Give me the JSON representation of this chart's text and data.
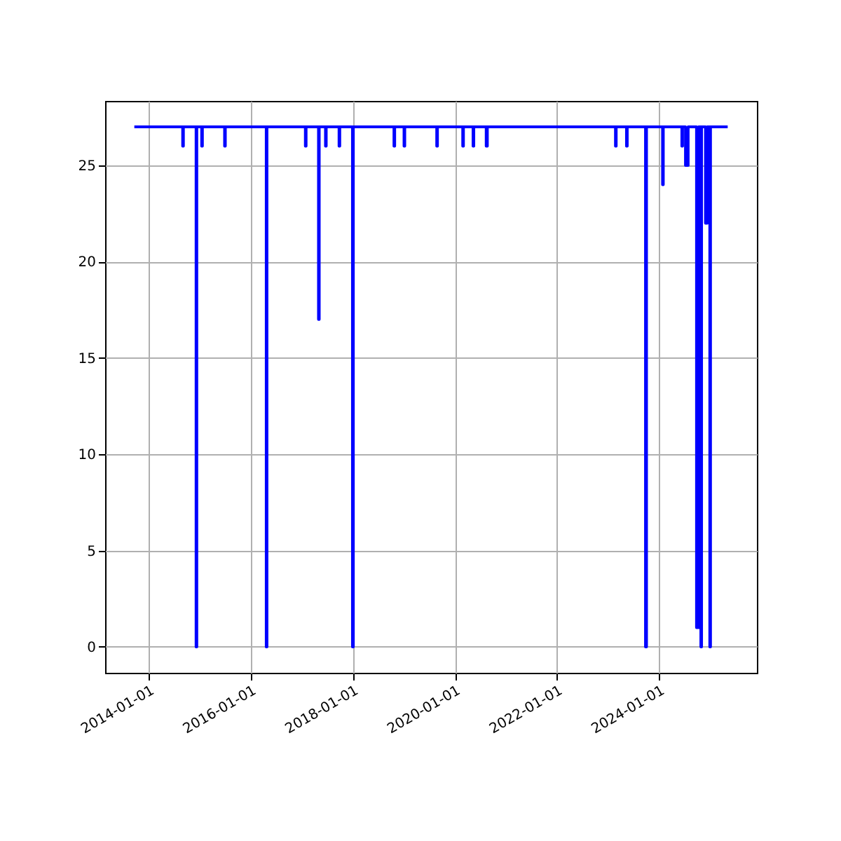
{
  "chart_data": {
    "type": "line",
    "x": [
      "2013-09-20",
      "2014-09-01",
      "2014-09-01",
      "2014-09-06",
      "2014-09-06",
      "2014-12-06",
      "2014-12-06",
      "2014-12-11",
      "2014-12-11",
      "2015-01-15",
      "2015-01-15",
      "2015-01-20",
      "2015-01-20",
      "2015-06-28",
      "2015-06-28",
      "2015-07-03",
      "2015-07-03",
      "2016-04-21",
      "2016-04-21",
      "2016-04-26",
      "2016-04-26",
      "2017-01-26",
      "2017-01-26",
      "2017-01-31",
      "2017-01-31",
      "2017-04-30",
      "2017-04-30",
      "2017-05-05",
      "2017-05-05",
      "2017-06-19",
      "2017-06-19",
      "2017-06-24",
      "2017-06-24",
      "2017-09-24",
      "2017-09-24",
      "2017-09-29",
      "2017-09-29",
      "2017-12-29",
      "2017-12-29",
      "2018-01-04",
      "2018-01-04",
      "2018-10-22",
      "2018-10-22",
      "2018-10-27",
      "2018-10-27",
      "2019-01-02",
      "2019-01-02",
      "2019-01-07",
      "2019-01-07",
      "2019-08-24",
      "2019-08-24",
      "2019-08-29",
      "2019-08-29",
      "2020-02-26",
      "2020-02-26",
      "2020-03-02",
      "2020-03-02",
      "2020-05-10",
      "2020-05-10",
      "2020-05-15",
      "2020-05-15",
      "2020-08-12",
      "2020-08-12",
      "2020-08-20",
      "2020-08-20",
      "2023-02-23",
      "2023-02-23",
      "2023-02-28",
      "2023-02-28",
      "2023-05-13",
      "2023-05-13",
      "2023-05-18",
      "2023-05-18",
      "2023-09-26",
      "2023-09-26",
      "2023-10-03",
      "2023-10-03",
      "2024-01-26",
      "2024-01-26",
      "2024-01-31",
      "2024-01-31",
      "2024-06-12",
      "2024-06-12",
      "2024-06-17",
      "2024-06-17",
      "2024-07-08",
      "2024-07-08",
      "2024-07-27",
      "2024-07-27",
      "2024-09-25",
      "2024-09-25",
      "2024-10-10",
      "2024-10-10",
      "2024-10-26",
      "2024-10-26",
      "2024-10-31",
      "2024-10-31",
      "2024-11-28",
      "2024-11-28",
      "2024-12-10",
      "2024-12-10",
      "2024-12-29",
      "2024-12-29",
      "2025-01-03",
      "2025-01-03",
      "2025-05-06"
    ],
    "series": [
      {
        "color": "#0000ff",
        "values": [
          27,
          27,
          26,
          26,
          27,
          27,
          0,
          0,
          27,
          27,
          26,
          26,
          27,
          27,
          26,
          26,
          27,
          27,
          0,
          0,
          27,
          27,
          26,
          26,
          27,
          27,
          17,
          17,
          27,
          27,
          26,
          26,
          27,
          27,
          26,
          26,
          27,
          27,
          0,
          0,
          27,
          27,
          26,
          26,
          27,
          27,
          26,
          26,
          27,
          27,
          26,
          26,
          27,
          27,
          26,
          26,
          27,
          27,
          26,
          26,
          27,
          27,
          26,
          26,
          27,
          27,
          26,
          26,
          27,
          27,
          26,
          26,
          27,
          27,
          0,
          0,
          27,
          27,
          24,
          24,
          27,
          27,
          26,
          26,
          27,
          27,
          25,
          25,
          27,
          27,
          1,
          1,
          27,
          27,
          0,
          0,
          27,
          27,
          22,
          22,
          27,
          27,
          0,
          0,
          27,
          27
        ]
      }
    ],
    "xlim": [
      "2013-02-23",
      "2025-12-01"
    ],
    "xticks": [
      "2014-01-01",
      "2016-01-01",
      "2018-01-01",
      "2020-01-01",
      "2022-01-01",
      "2024-01-01"
    ],
    "ylim": [
      -1.35,
      28.35
    ],
    "yticks": [
      0,
      5,
      10,
      15,
      20,
      25
    ],
    "grid": true,
    "marker": "none",
    "line_style": "solid"
  }
}
